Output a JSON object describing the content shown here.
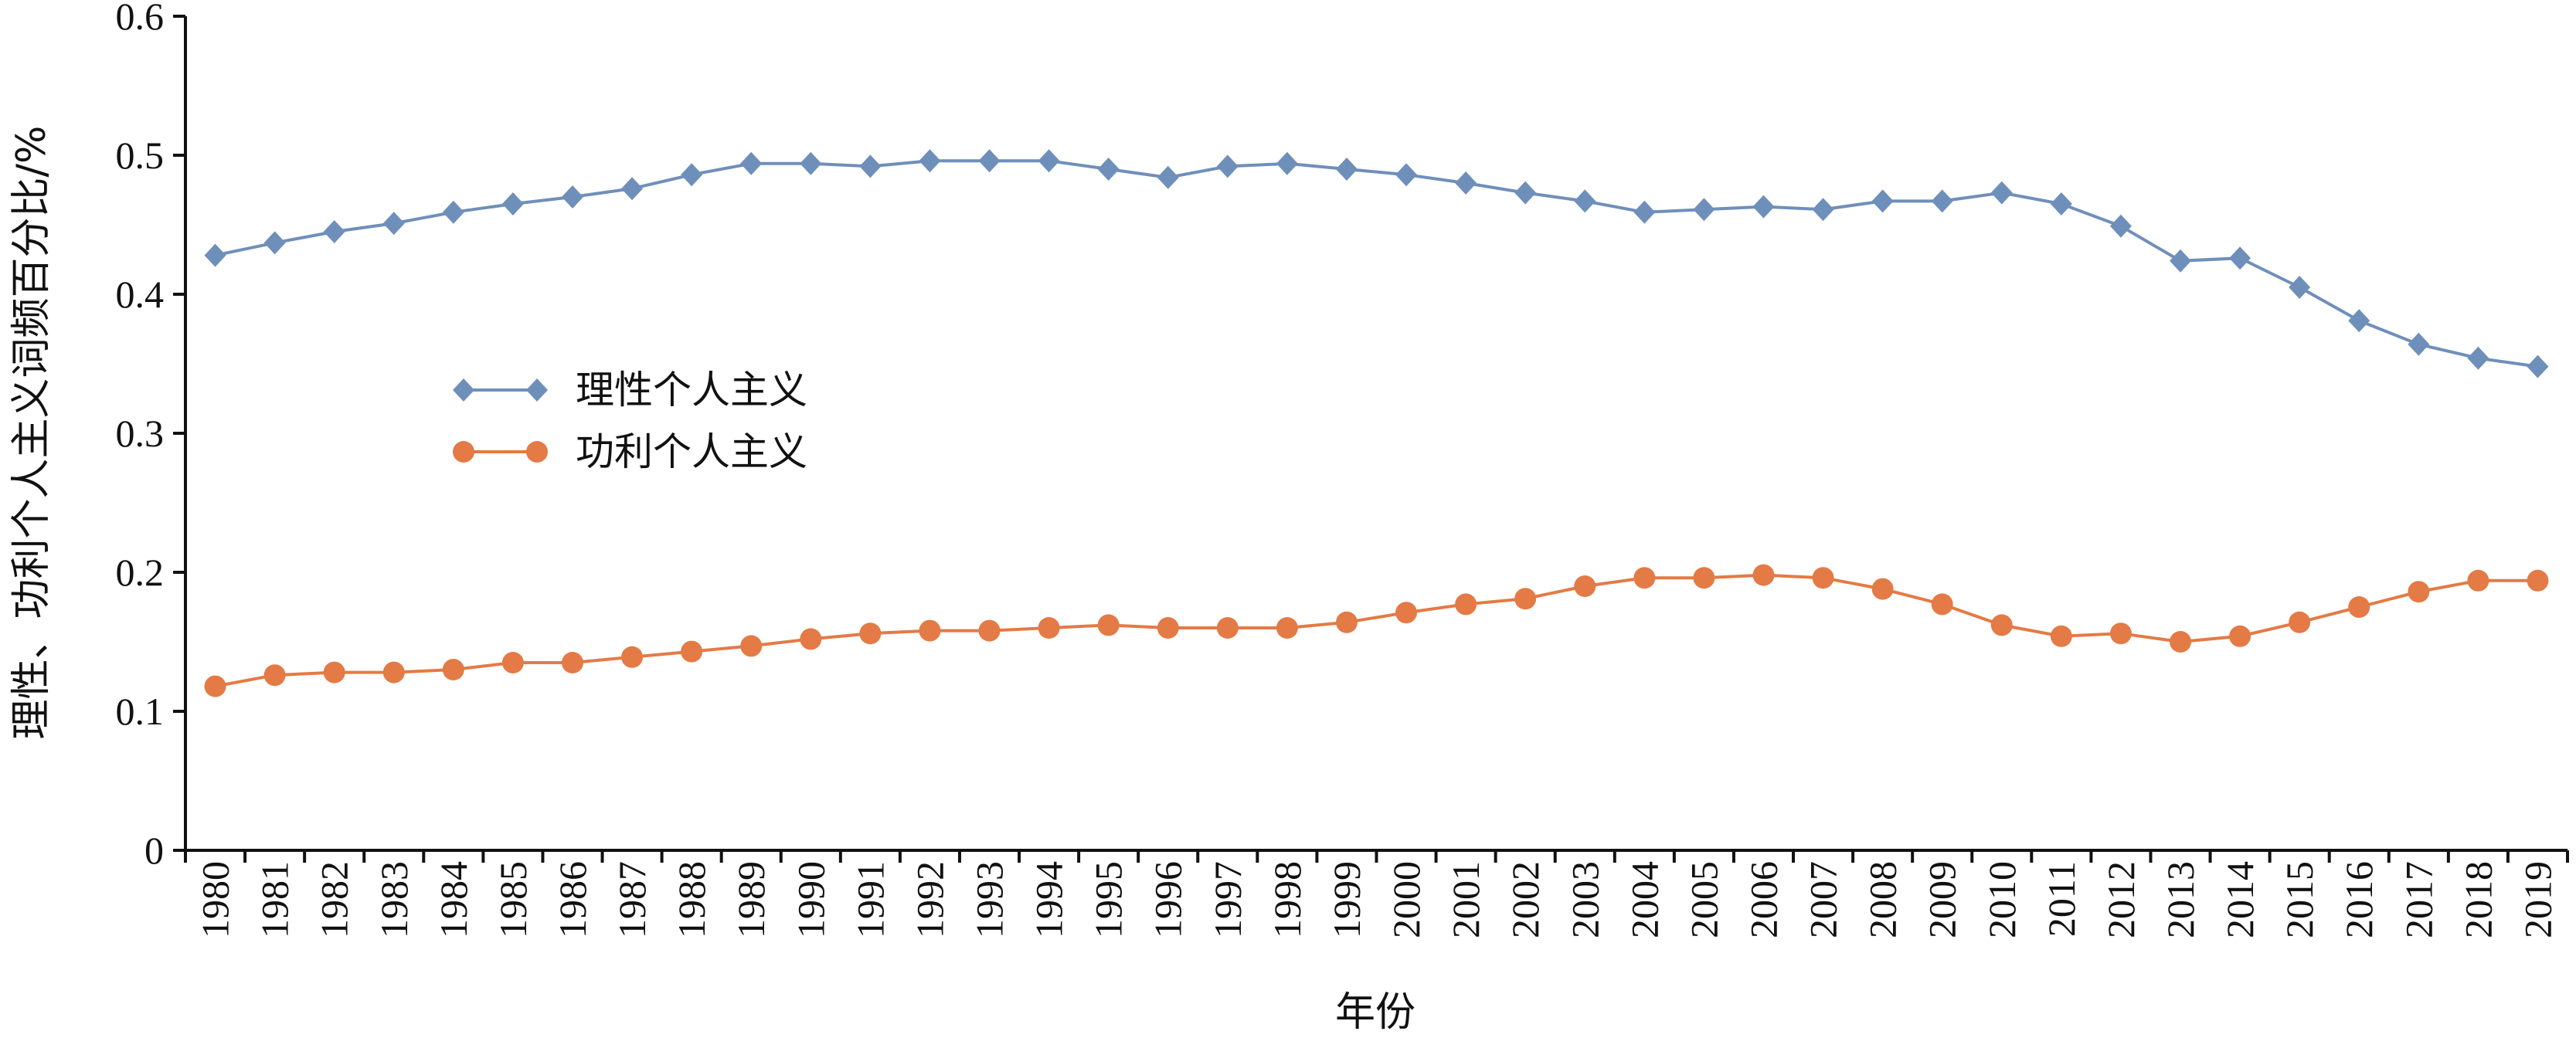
{
  "chart_data": {
    "type": "line",
    "title": "",
    "xlabel": "年份",
    "ylabel": "理性、功利个人主义词频百分比/%",
    "ylim": [
      0,
      0.6
    ],
    "yticks": [
      "0",
      "0.1",
      "0.2",
      "0.3",
      "0.4",
      "0.5",
      "0.6"
    ],
    "grid": false,
    "legend_position": "center-left",
    "categories": [
      "1980",
      "1981",
      "1982",
      "1983",
      "1984",
      "1985",
      "1986",
      "1987",
      "1988",
      "1989",
      "1990",
      "1991",
      "1992",
      "1993",
      "1994",
      "1995",
      "1996",
      "1997",
      "1998",
      "1999",
      "2000",
      "2001",
      "2002",
      "2003",
      "2004",
      "2005",
      "2006",
      "2007",
      "2008",
      "2009",
      "2010",
      "2011",
      "2012",
      "2013",
      "2014",
      "2015",
      "2016",
      "2017",
      "2018",
      "2019"
    ],
    "series": [
      {
        "name": "理性个人主义",
        "color": "#6f8fbb",
        "marker": "diamond",
        "values": [
          0.428,
          0.437,
          0.445,
          0.451,
          0.459,
          0.465,
          0.47,
          0.476,
          0.486,
          0.494,
          0.494,
          0.492,
          0.496,
          0.496,
          0.496,
          0.49,
          0.484,
          0.492,
          0.494,
          0.49,
          0.486,
          0.48,
          0.473,
          0.467,
          0.459,
          0.461,
          0.463,
          0.461,
          0.467,
          0.467,
          0.473,
          0.465,
          0.449,
          0.424,
          0.426,
          0.405,
          0.381,
          0.364,
          0.354,
          0.348
        ]
      },
      {
        "name": "功利个人主义",
        "color": "#e47a45",
        "marker": "circle",
        "values": [
          0.118,
          0.126,
          0.128,
          0.128,
          0.13,
          0.135,
          0.135,
          0.139,
          0.143,
          0.147,
          0.152,
          0.156,
          0.158,
          0.158,
          0.16,
          0.162,
          0.16,
          0.16,
          0.16,
          0.164,
          0.171,
          0.177,
          0.181,
          0.19,
          0.196,
          0.196,
          0.198,
          0.196,
          0.188,
          0.177,
          0.162,
          0.154,
          0.156,
          0.15,
          0.154,
          0.164,
          0.175,
          0.186,
          0.194,
          0.194
        ]
      }
    ]
  }
}
